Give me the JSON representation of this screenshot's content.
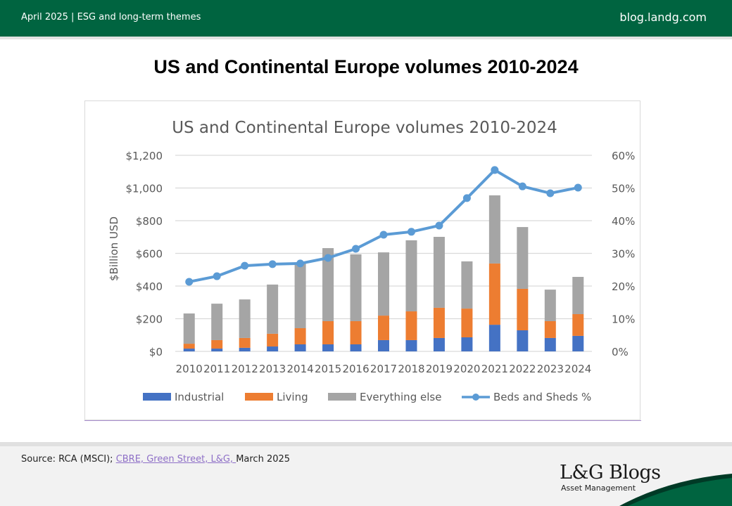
{
  "header": {
    "left_text": "April 2025 | ESG and long-term themes",
    "right_text": "blog.landg.com"
  },
  "page_title": "US and Continental Europe volumes 2010-2024",
  "footer": {
    "source_prefix": "Source: RCA (MSCI); ",
    "source_link": "CBRE, Green Street, L&G, ",
    "source_suffix": "March 2025",
    "brand_name": "L&G Blogs",
    "brand_sub": "Asset Management"
  },
  "colors": {
    "header_bg": "#006440",
    "industrial": "#4472C4",
    "living": "#ED7D31",
    "everything_else": "#A5A5A5",
    "beds_sheds": "#5B9BD5"
  },
  "chart_data": {
    "type": "bar",
    "subtype": "stacked-bar-with-line",
    "title": "US and Continental Europe volumes 2010-2024",
    "xlabel": "",
    "ylabel": "$Billion USD",
    "y2label": "",
    "ylim": [
      0,
      1200
    ],
    "y2lim": [
      0,
      60
    ],
    "yticks": [
      "$0",
      "$200",
      "$400",
      "$600",
      "$800",
      "$1,000",
      "$1,200"
    ],
    "y2ticks": [
      "0%",
      "10%",
      "20%",
      "30%",
      "40%",
      "50%",
      "60%"
    ],
    "grid": true,
    "legend_position": "bottom",
    "categories": [
      "2010",
      "2011",
      "2012",
      "2013",
      "2014",
      "2015",
      "2016",
      "2017",
      "2018",
      "2019",
      "2020",
      "2021",
      "2022",
      "2023",
      "2024"
    ],
    "series": [
      {
        "name": "Industrial",
        "type": "bar",
        "axis": "left",
        "values": [
          17,
          17,
          22,
          30,
          43,
          43,
          43,
          69,
          69,
          82,
          86,
          163,
          129,
          82,
          95
        ]
      },
      {
        "name": "Living",
        "type": "bar",
        "axis": "left",
        "values": [
          30,
          52,
          60,
          78,
          99,
          142,
          142,
          150,
          176,
          185,
          176,
          375,
          254,
          103,
          133
        ]
      },
      {
        "name": "Everything else",
        "type": "bar",
        "axis": "left",
        "values": [
          185,
          223,
          236,
          301,
          400,
          447,
          409,
          387,
          435,
          434,
          289,
          417,
          378,
          193,
          228
        ]
      },
      {
        "name": "Beds and Sheds %",
        "type": "line",
        "axis": "right",
        "values": [
          21.3,
          23.0,
          26.2,
          26.7,
          26.9,
          28.6,
          31.4,
          35.7,
          36.6,
          38.5,
          46.9,
          55.5,
          50.5,
          48.4,
          50.1
        ]
      }
    ]
  }
}
